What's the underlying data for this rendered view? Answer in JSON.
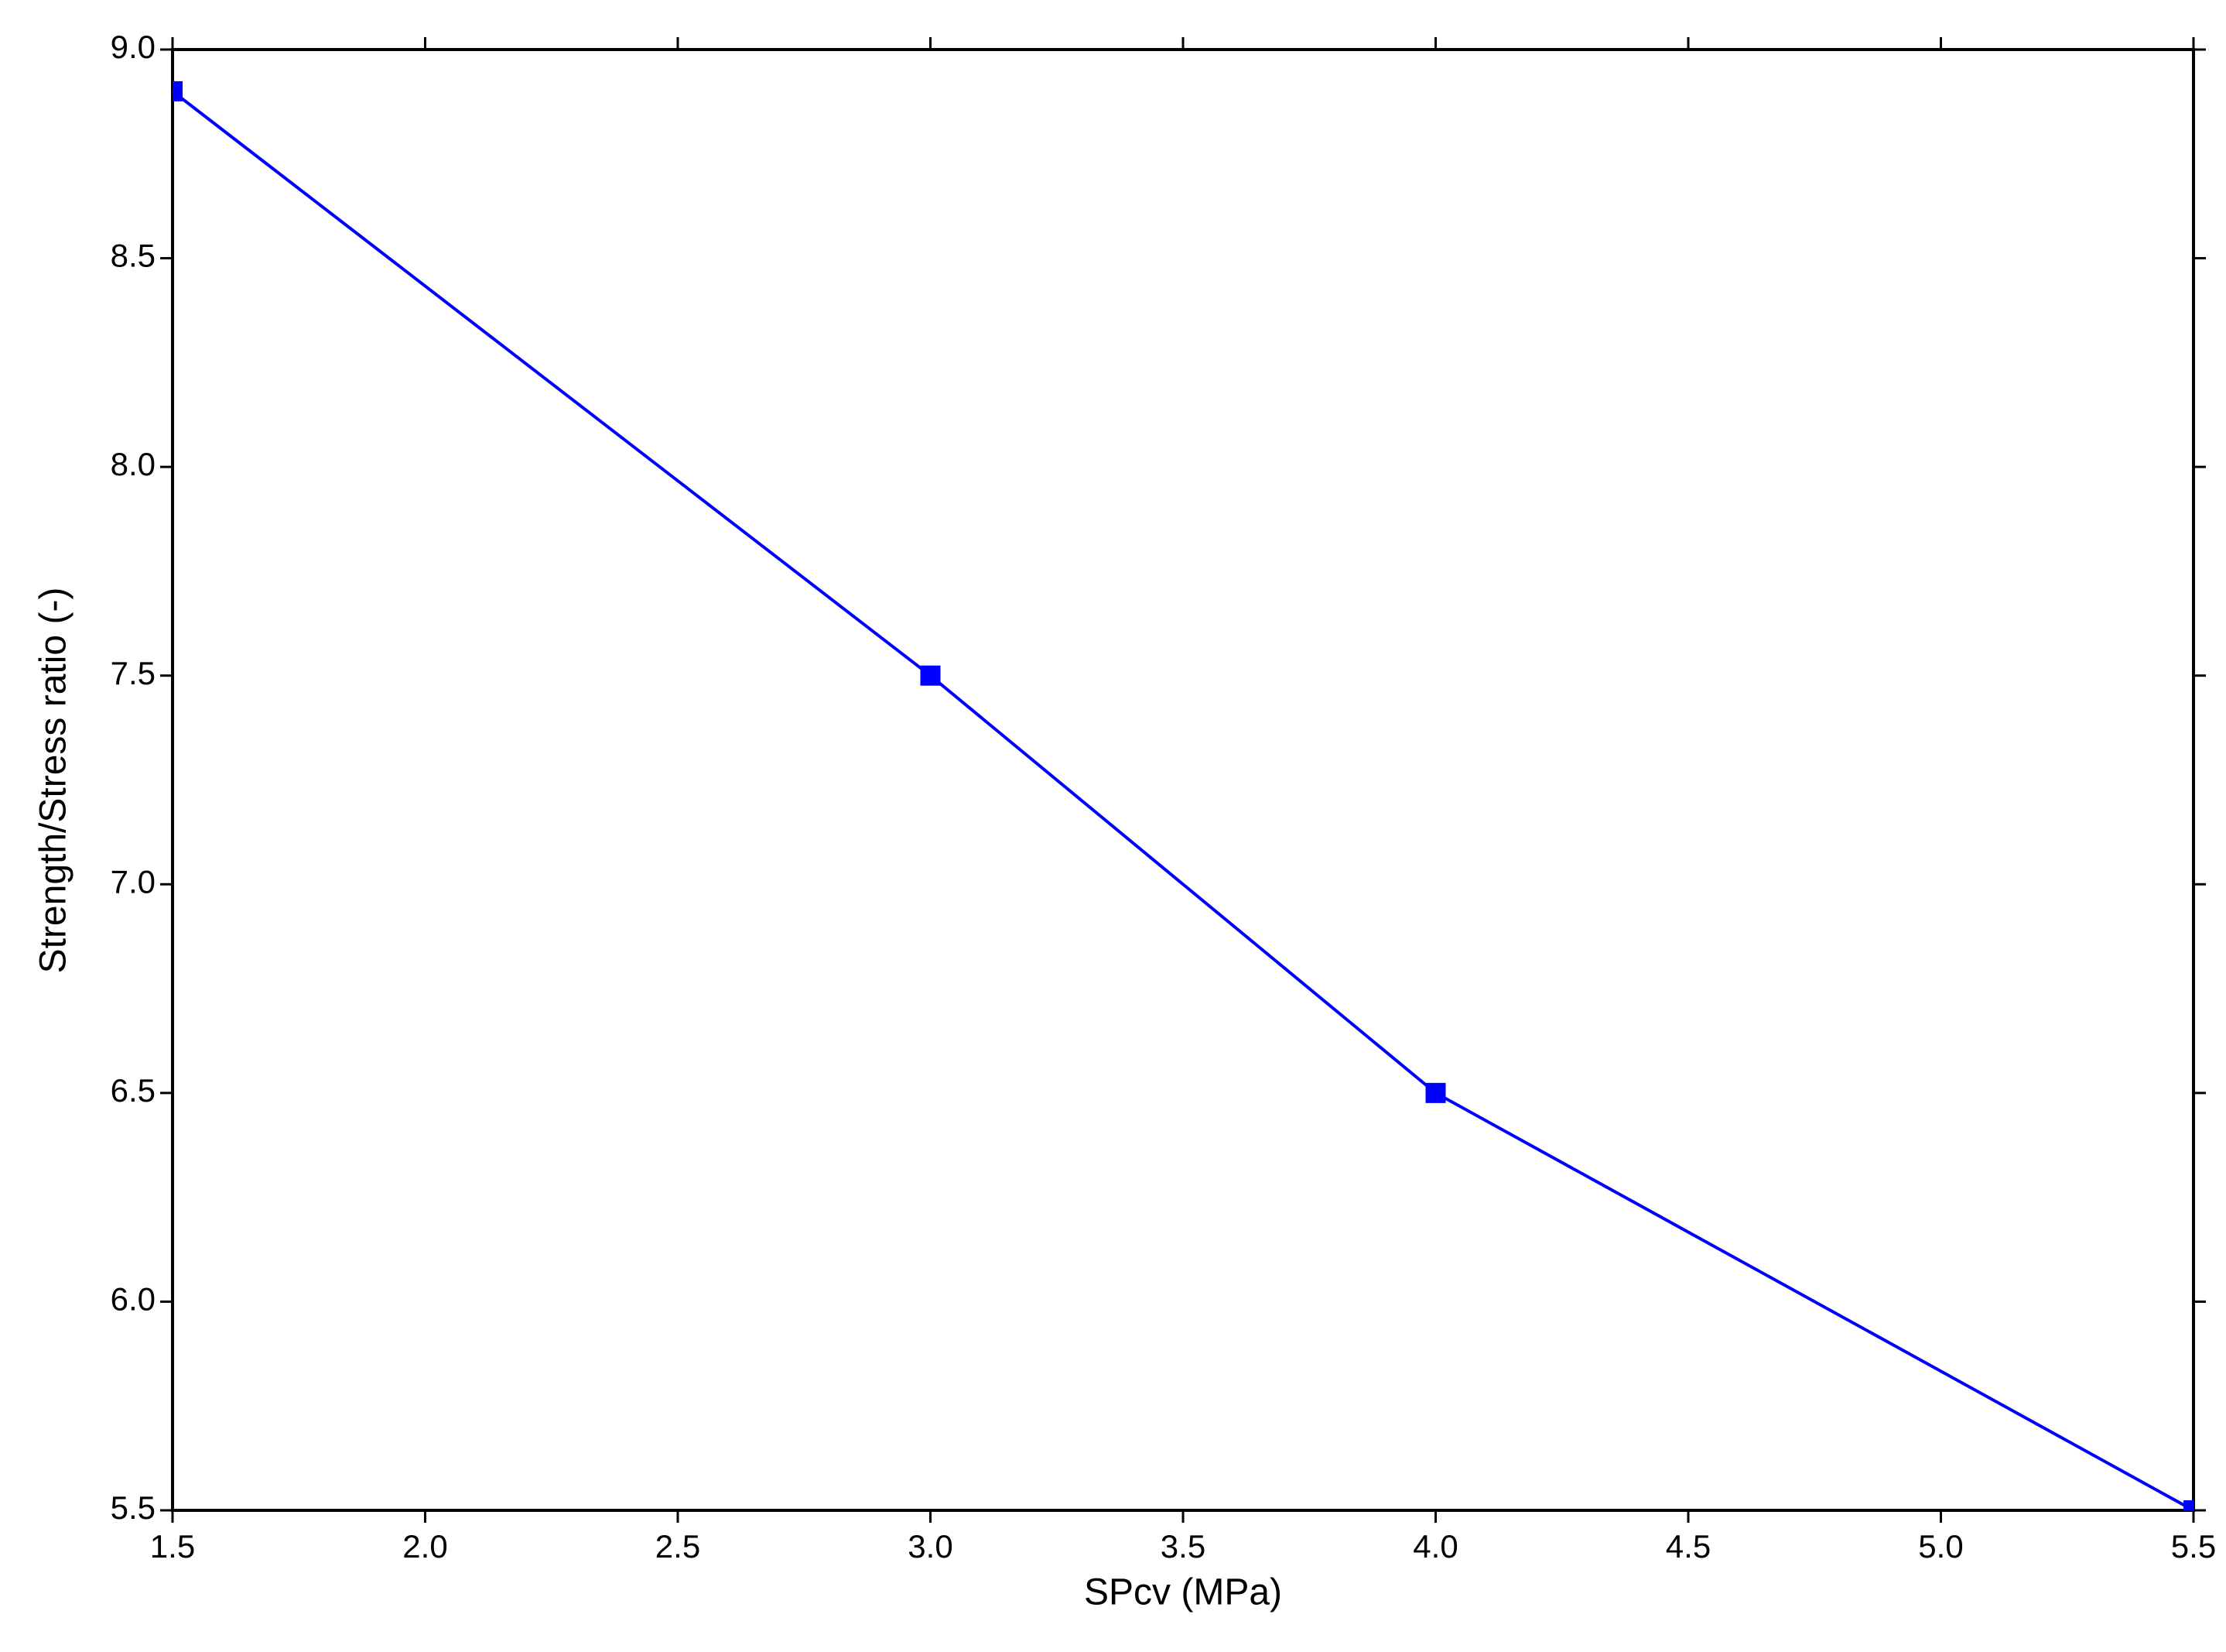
{
  "chart_data": {
    "type": "line",
    "xlabel": "SPcv (MPa)",
    "ylabel": "Strength/Stress ratio (-)",
    "x": [
      1.5,
      3.0,
      4.0,
      5.5
    ],
    "values": [
      8.9,
      7.5,
      6.5,
      5.5
    ],
    "color": "#0000ff",
    "xlim": [
      1.5,
      5.5
    ],
    "ylim": [
      5.5,
      9.0
    ],
    "xticks": [
      1.5,
      {
        "value": 2,
        "label": "2.0"
      },
      2.5,
      {
        "value": 3,
        "label": "3.0"
      },
      3.5,
      {
        "value": 4,
        "label": "4.0"
      },
      4.5,
      {
        "value": 5,
        "label": "5.0"
      },
      5.5
    ],
    "yticks": [
      5.5,
      {
        "value": 6,
        "label": "6.0"
      },
      6.5,
      {
        "value": 7,
        "label": "7.0"
      },
      7.5,
      {
        "value": 8,
        "label": "8.0"
      },
      8.5,
      {
        "value": 9,
        "label": "9.0"
      }
    ],
    "grid": false
  }
}
